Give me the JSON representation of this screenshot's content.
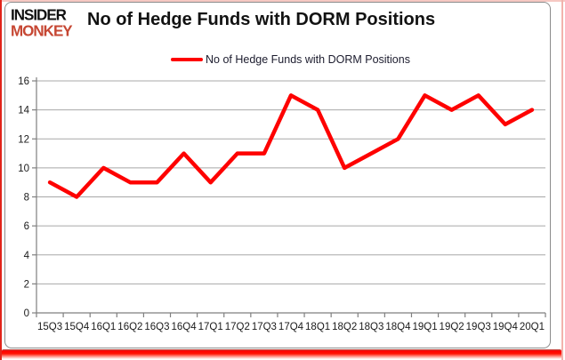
{
  "page": {
    "logo_line1": "INSIDER",
    "logo_line2": "MONKEY",
    "title": "No of Hedge Funds with DORM Positions"
  },
  "legend": {
    "label": "No of Hedge Funds with DORM Positions",
    "line_color": "#fe0100"
  },
  "colors": {
    "series_red": "#fe0100",
    "gridline_gray": "#a8a8a8",
    "axis_gray": "#7f7f7f",
    "axis_label": "#1a1a1a",
    "logo_black": "#111111",
    "logo_red": "#c64733",
    "frame_red": "#e2241a",
    "frame_pink": "#f2b3ad"
  },
  "chart_data": {
    "type": "line",
    "title": "No of Hedge Funds with DORM Positions",
    "categories": [
      "15Q3",
      "15Q4",
      "16Q1",
      "16Q2",
      "16Q3",
      "16Q4",
      "17Q1",
      "17Q2",
      "17Q3",
      "17Q4",
      "18Q1",
      "18Q2",
      "18Q3",
      "18Q4",
      "19Q1",
      "19Q2",
      "19Q3",
      "19Q4",
      "20Q1"
    ],
    "series": [
      {
        "name": "No of Hedge Funds with DORM Positions",
        "color": "#fe0100",
        "values": [
          9,
          8,
          10,
          9,
          9,
          11,
          9,
          11,
          11,
          15,
          14,
          10,
          11,
          12,
          15,
          14,
          15,
          13,
          14
        ]
      }
    ],
    "xlabel": "",
    "ylabel": "",
    "ylim": [
      0,
      16
    ],
    "ytick_interval": 2,
    "yticks": [
      0,
      2,
      4,
      6,
      8,
      10,
      12,
      14,
      16
    ],
    "grid": true,
    "legend_position": "top-center"
  }
}
